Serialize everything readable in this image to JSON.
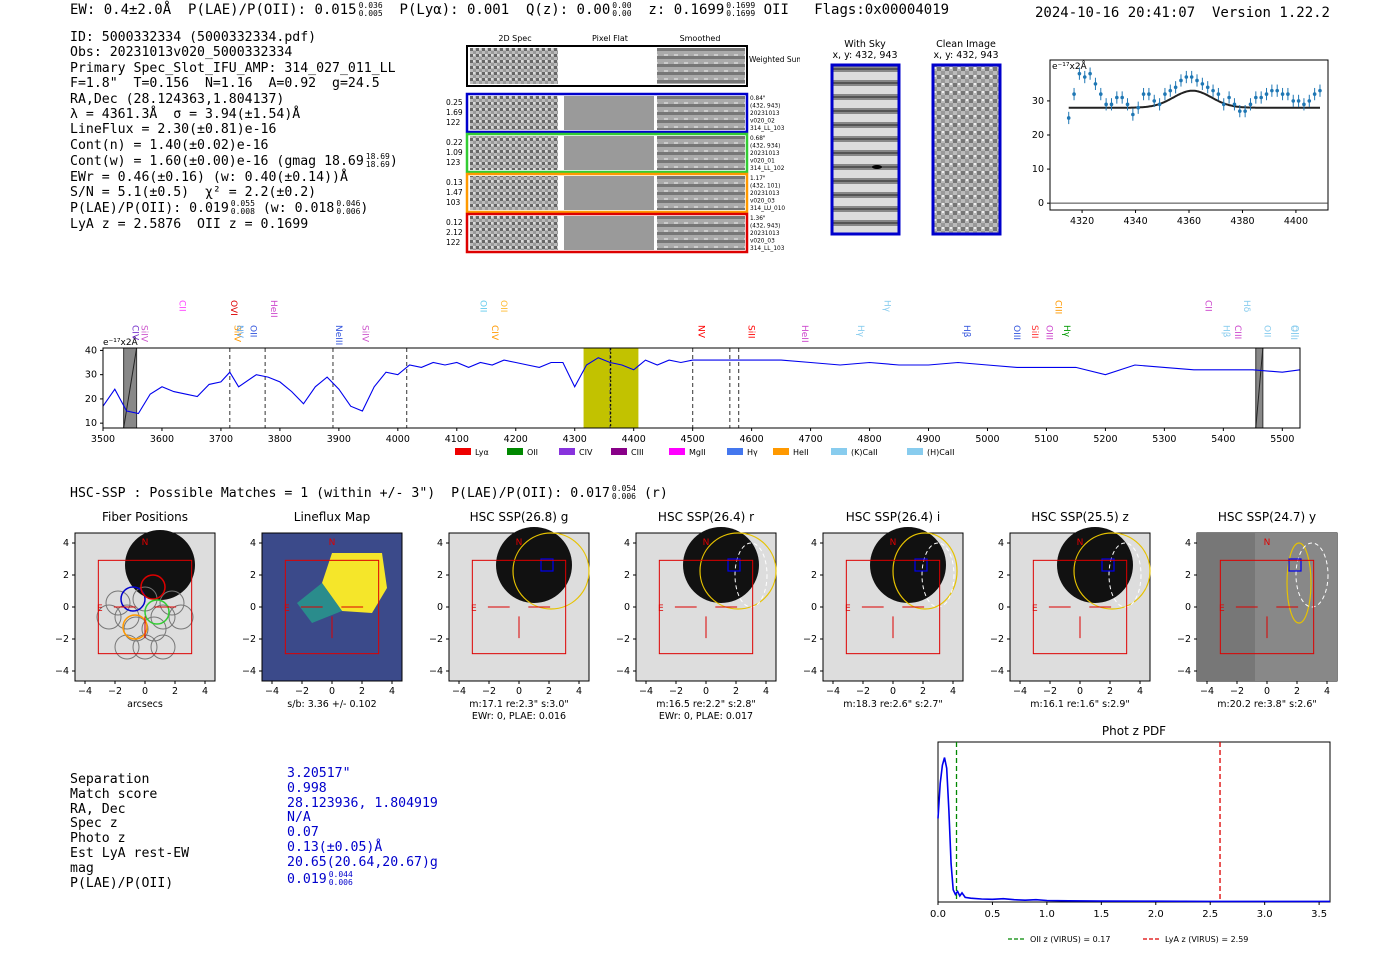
{
  "header": {
    "ew": "EW: 0.4±2.0Å",
    "plae_label": "P(LAE)/P(OII): 0.015",
    "plae_hi": "0.036",
    "plae_lo": "0.005",
    "plya": "P(Lyα): 0.001",
    "qz_label": "Q(z): 0.00",
    "qz_hi": "0.00",
    "qz_lo": "0.00",
    "z_label": "z: 0.1699",
    "z_hi": "0.1699",
    "z_lo": "0.1699",
    "z_line": "OII",
    "flags": "Flags:0x00004019",
    "timestamp": "2024-10-16 20:41:07  Version 1.22.2"
  },
  "info": {
    "id": "ID: 5000332334 (5000332334.pdf)",
    "obs": "Obs: 20231013v020_5000332334",
    "primary": "Primary Spec_Slot_IFU_AMP: 314_027_011_LL",
    "params": "F=1.8\"  T=0.156  N=1.16  A=0.92  g=24.5",
    "radec": "RA,Dec (28.124363,1.804137)",
    "lambda": "λ = 4361.3Å  σ = 3.94(±1.54)Å",
    "lineflux": "LineFlux = 2.30(±0.81)e-16",
    "contn": "Cont(n) = 1.40(±0.02)e-16",
    "contw": "Cont(w) = 1.60(±0.00)e-16 (gmag 18.69",
    "contw_hi": "18.69",
    "contw_lo": "18.69",
    "ewr": "EWr = 0.46(±0.16) (w: 0.40(±0.14))Å",
    "sn": "S/N = 5.1(±0.5)  χ² = 2.2(±0.2)",
    "plae": "P(LAE)/P(OII): 0.019",
    "plae_hi": "0.055",
    "plae_lo": "0.008",
    "plae_w": "(w: 0.018",
    "plae_w_hi": "0.046",
    "plae_w_lo": "0.006",
    "lyaz": "LyA z = 2.5876  OII z = 0.1699"
  },
  "cutouts": {
    "col_2d": "2D Spec",
    "col_flat": "Pixel Flat",
    "col_smooth": "Smoothed",
    "weighted": "Weighted Sum",
    "rows": [
      {
        "w": "0.25",
        "t": "1.69",
        "n": "122",
        "d": "0.84\"",
        "xy": "(432, 943)",
        "date": "20231013",
        "shot": "v020_02",
        "amp": "314_LL_103",
        "color": "#0000cc"
      },
      {
        "w": "0.22",
        "t": "1.09",
        "n": "123",
        "d": "0.68\"",
        "xy": "(432, 934)",
        "date": "20231013",
        "shot": "v020_01",
        "amp": "314_LL_102",
        "color": "#33cc33"
      },
      {
        "w": "0.13",
        "t": "1.47",
        "n": "103",
        "d": "1.17\"",
        "xy": "(432, 101)",
        "date": "20231013",
        "shot": "v020_03",
        "amp": "314_LU_010",
        "color": "#ff9900"
      },
      {
        "w": "0.12",
        "t": "2.12",
        "n": "122",
        "d": "1.36\"",
        "xy": "(432, 943)",
        "date": "20231013",
        "shot": "v020_03",
        "amp": "314_LL_103",
        "color": "#dd0000"
      }
    ],
    "with_sky": "With Sky",
    "with_sky_xy": "x, y: 432, 943",
    "clean": "Clean Image",
    "clean_xy": "x, y: 432, 943"
  },
  "chart_data": [
    {
      "id": "zoom-spectrum",
      "type": "line",
      "ylabel": "e⁻¹⁷x2Å",
      "xlim": [
        4308,
        4412
      ],
      "ylim": [
        -2,
        42
      ],
      "xticks": [
        4320,
        4340,
        4360,
        4380,
        4400
      ],
      "yticks": [
        0,
        10,
        20,
        30
      ],
      "x": [
        4315,
        4317,
        4319,
        4321,
        4323,
        4325,
        4327,
        4329,
        4331,
        4333,
        4335,
        4337,
        4339,
        4341,
        4343,
        4345,
        4347,
        4349,
        4351,
        4353,
        4355,
        4357,
        4359,
        4361,
        4363,
        4365,
        4367,
        4369,
        4371,
        4373,
        4375,
        4377,
        4379,
        4381,
        4383,
        4385,
        4387,
        4389,
        4391,
        4393,
        4395,
        4397,
        4399,
        4401,
        4403,
        4405,
        4407,
        4409
      ],
      "values": [
        25,
        32,
        38,
        37,
        38,
        35,
        32,
        29,
        29,
        31,
        31,
        29,
        26,
        28,
        32,
        32,
        30,
        29,
        32,
        33,
        34,
        36,
        37,
        37,
        36,
        35,
        34,
        33,
        32,
        29,
        31,
        29,
        27,
        27,
        29,
        31,
        31,
        32,
        33,
        33,
        32,
        32,
        30,
        30,
        29,
        30,
        32,
        33
      ],
      "model_baseline": 28,
      "model_peak": 33,
      "model_center": 4361.3,
      "model_sigma": 3.94
    },
    {
      "id": "full-spectrum",
      "type": "line",
      "ylabel": "e⁻¹⁷x2Å",
      "xlim": [
        3500,
        5530
      ],
      "ylim": [
        8,
        41
      ],
      "xticks": [
        3500,
        3600,
        3700,
        3800,
        3900,
        4000,
        4100,
        4200,
        4300,
        4400,
        4500,
        4600,
        4700,
        4800,
        4900,
        5000,
        5100,
        5200,
        5300,
        5400,
        5500
      ],
      "yticks": [
        10,
        20,
        30,
        40
      ],
      "x": [
        3500,
        3520,
        3540,
        3560,
        3580,
        3600,
        3620,
        3640,
        3660,
        3680,
        3700,
        3715,
        3730,
        3760,
        3780,
        3800,
        3820,
        3840,
        3860,
        3880,
        3900,
        3920,
        3940,
        3960,
        3980,
        4000,
        4020,
        4040,
        4060,
        4080,
        4100,
        4120,
        4140,
        4160,
        4180,
        4200,
        4220,
        4240,
        4260,
        4280,
        4300,
        4320,
        4340,
        4360,
        4380,
        4400,
        4420,
        4440,
        4460,
        4480,
        4500,
        4550,
        4600,
        4650,
        4700,
        4750,
        4800,
        4850,
        4900,
        4950,
        5000,
        5050,
        5100,
        5150,
        5200,
        5250,
        5300,
        5350,
        5400,
        5450,
        5500,
        5530
      ],
      "values": [
        17,
        24,
        15,
        14,
        22,
        25,
        23,
        22,
        21,
        26,
        27,
        31,
        25,
        30,
        29,
        27,
        23,
        18,
        25,
        29,
        24,
        17,
        15,
        25,
        31,
        30,
        34,
        33,
        35,
        34,
        35,
        33,
        35,
        34,
        36,
        35,
        34,
        33,
        35,
        35,
        25,
        34,
        37,
        35,
        34,
        32,
        36,
        34,
        36,
        35,
        36,
        36,
        36,
        36,
        35,
        34,
        35,
        34,
        34,
        35,
        34,
        33,
        33,
        33,
        30,
        34,
        33,
        32,
        32,
        32,
        31,
        32
      ],
      "shade_band": [
        4315,
        4408
      ],
      "shade_center": 4361,
      "gray_bands": [
        [
          3535,
          3557
        ],
        [
          5455,
          5467
        ]
      ],
      "dashed_lines": [
        3715,
        3775,
        3890,
        4015,
        4360,
        4500,
        4563,
        4578
      ],
      "line_labels": [
        {
          "x": 3545,
          "label": "CIV",
          "color": "#7733cc"
        },
        {
          "x": 3560,
          "label": "SiIV",
          "color": "#cc55cc"
        },
        {
          "x": 3625,
          "label": "CII",
          "color": "#ff44ff"
        },
        {
          "x": 3712,
          "label": "OVI",
          "color": "#dd0000"
        },
        {
          "x": 3718,
          "label": "SiIV",
          "color": "#ff9900"
        },
        {
          "x": 3722,
          "label": "NV",
          "color": "#66aaee"
        },
        {
          "x": 3745,
          "label": "OII",
          "color": "#3355dd"
        },
        {
          "x": 3780,
          "label": "HeII",
          "color": "#cc44cc"
        },
        {
          "x": 3890,
          "label": "NeIII",
          "color": "#3355dd"
        },
        {
          "x": 3935,
          "label": "SiIV",
          "color": "#cc55cc"
        },
        {
          "x": 4135,
          "label": "OII",
          "color": "#66ccee"
        },
        {
          "x": 4155,
          "label": "CIV",
          "color": "#ff9900"
        },
        {
          "x": 4170,
          "label": "OII",
          "color": "#ffbb33"
        },
        {
          "x": 4505,
          "label": "NV",
          "color": "#ff0000"
        },
        {
          "x": 4590,
          "label": "SiII",
          "color": "#ff0000"
        },
        {
          "x": 4680,
          "label": "HeII",
          "color": "#cc44cc"
        },
        {
          "x": 4775,
          "label": "Hγ",
          "color": "#88ccee"
        },
        {
          "x": 4820,
          "label": "Hγ",
          "color": "#88ccee"
        },
        {
          "x": 4955,
          "label": "Hβ",
          "color": "#3355dd"
        },
        {
          "x": 5040,
          "label": "OIII",
          "color": "#3355dd"
        },
        {
          "x": 5070,
          "label": "SiII",
          "color": "#ff3333"
        },
        {
          "x": 5095,
          "label": "OIII",
          "color": "#cc44cc"
        },
        {
          "x": 5110,
          "label": "CIII",
          "color": "#ff9900"
        },
        {
          "x": 5125,
          "label": "Hγ",
          "color": "#009900"
        },
        {
          "x": 5365,
          "label": "CII",
          "color": "#cc44cc"
        },
        {
          "x": 5395,
          "label": "Hβ",
          "color": "#88ccee"
        },
        {
          "x": 5415,
          "label": "CIII",
          "color": "#cc44cc"
        },
        {
          "x": 5430,
          "label": "Hδ",
          "color": "#88ccee"
        },
        {
          "x": 5465,
          "label": "OII",
          "color": "#88ccee"
        },
        {
          "x": 5510,
          "label": "OIII",
          "color": "#88ccee"
        },
        {
          "x": 5512,
          "label": "OII",
          "color": "#88ccee"
        }
      ],
      "legend": [
        {
          "label": "Lyα",
          "color": "#ee0000"
        },
        {
          "label": "OII",
          "color": "#008800"
        },
        {
          "label": "CIV",
          "color": "#8833dd"
        },
        {
          "label": "CIII",
          "color": "#880088"
        },
        {
          "label": "MgII",
          "color": "#ff00ff"
        },
        {
          "label": "Hγ",
          "color": "#4477ee"
        },
        {
          "label": "HeII",
          "color": "#ff9900"
        },
        {
          "label": "(K)CaII",
          "color": "#88ccee"
        },
        {
          "label": "(H)CaII",
          "color": "#88ccee"
        }
      ]
    },
    {
      "id": "photz-pdf",
      "type": "line",
      "title": "Phot z PDF",
      "xlim": [
        0.0,
        3.6
      ],
      "xticks": [
        0.0,
        0.5,
        1.0,
        1.5,
        2.0,
        2.5,
        3.0,
        3.5
      ],
      "x": [
        0.0,
        0.02,
        0.04,
        0.06,
        0.08,
        0.1,
        0.12,
        0.14,
        0.16,
        0.18,
        0.2,
        0.22,
        0.25,
        0.3,
        0.4,
        0.5,
        0.6,
        0.7,
        0.8,
        0.9,
        1.0,
        1.2,
        1.5,
        2.0,
        2.5,
        3.0,
        3.5,
        3.6
      ],
      "values": [
        0.55,
        0.78,
        0.9,
        0.95,
        0.88,
        0.6,
        0.25,
        0.08,
        0.05,
        0.07,
        0.04,
        0.06,
        0.03,
        0.025,
        0.02,
        0.018,
        0.022,
        0.015,
        0.012,
        0.015,
        0.01,
        0.008,
        0.006,
        0.005,
        0.004,
        0.004,
        0.004,
        0.004
      ],
      "oii_z": 0.17,
      "lya_z": 2.59,
      "legend_oii": "OII z (VIRUS) = 0.17",
      "legend_lya": "LyA z (VIRUS) = 2.59"
    }
  ],
  "hsc": {
    "heading": "HSC-SSP : Possible Matches = 1 (within +/- 3\")  P(LAE)/P(OII): 0.017",
    "heading_hi": "0.054",
    "heading_lo": "0.006",
    "heading_band": "(r)",
    "axis_ticks": [
      "4",
      "2",
      "0",
      "−2",
      "−4"
    ],
    "panels": [
      {
        "title": "Fiber Positions",
        "cap1": "arcsecs",
        "cap2": ""
      },
      {
        "title": "Lineflux Map",
        "cap1": "s/b: 3.36 +/- 0.102",
        "cap2": ""
      },
      {
        "title": "HSC SSP(26.8) g",
        "cap1": "m:17.1   re:2.3\"   s:3.0\"",
        "cap2": "EWr: 0, PLAE: 0.016"
      },
      {
        "title": "HSC SSP(26.4) r",
        "cap1": "m:16.5   re:2.2\"   s:2.8\"",
        "cap2": "EWr: 0, PLAE: 0.017"
      },
      {
        "title": "HSC SSP(26.4) i",
        "cap1": "m:18.3   re:2.6\"   s:2.7\"",
        "cap2": ""
      },
      {
        "title": "HSC SSP(25.5) z",
        "cap1": "m:16.1   re:1.6\"   s:2.9\"",
        "cap2": ""
      },
      {
        "title": "HSC SSP(24.7) y",
        "cap1": "m:20.2   re:3.8\"   s:2.6\"",
        "cap2": ""
      }
    ],
    "compass_n": "N",
    "compass_e": "E"
  },
  "match": {
    "labels": [
      "Separation",
      "Match score",
      "RA, Dec",
      "Spec z",
      "Photo z",
      "Est LyA rest-EW",
      "mag",
      "P(LAE)/P(OII)"
    ],
    "values": [
      "3.20517\"",
      "0.998",
      "28.123936, 1.804919",
      "N/A",
      "0.07",
      "0.13(±0.05)Å",
      "20.65(20.64,20.67)g",
      "0.019"
    ],
    "plae_hi": "0.044",
    "plae_lo": "0.006"
  }
}
